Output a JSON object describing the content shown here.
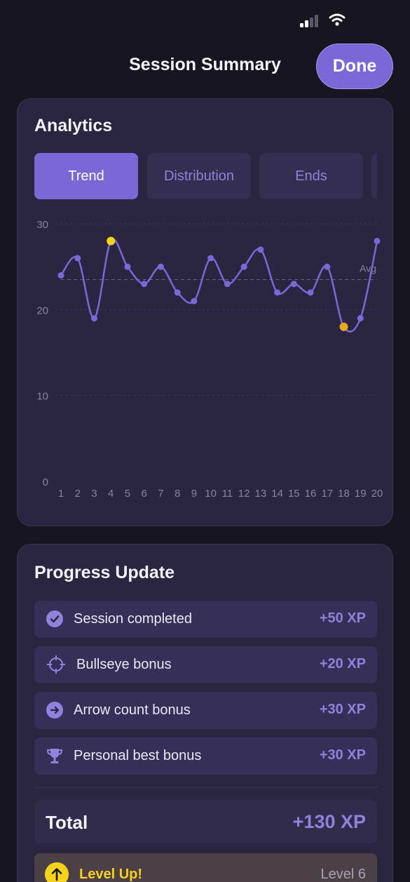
{
  "header": {
    "title": "Session Summary",
    "done_label": "Done"
  },
  "analytics": {
    "title": "Analytics",
    "tabs": [
      {
        "label": "Trend",
        "active": true
      },
      {
        "label": "Distribution",
        "active": false
      },
      {
        "label": "Ends",
        "active": false
      },
      {
        "label": "",
        "active": false
      }
    ]
  },
  "chart_data": {
    "type": "line",
    "x": [
      1,
      2,
      3,
      4,
      5,
      6,
      7,
      8,
      9,
      10,
      11,
      12,
      13,
      14,
      15,
      16,
      17,
      18,
      19,
      20
    ],
    "values": [
      24,
      26,
      19,
      28,
      25,
      23,
      25,
      22,
      21,
      26,
      23,
      25,
      27,
      22,
      23,
      22,
      25,
      18,
      19,
      28
    ],
    "ylim": [
      0,
      30
    ],
    "yticks": [
      0,
      10,
      20,
      30
    ],
    "average": 23.5,
    "average_label": "Avg",
    "highlights": [
      {
        "x": 4,
        "value": 28,
        "color": "#f5d21c"
      },
      {
        "x": 18,
        "value": 18,
        "color": "#e8a91a"
      }
    ],
    "line_color": "#7b68d6",
    "grid": true
  },
  "progress": {
    "title": "Progress Update",
    "items": [
      {
        "label": "Session completed",
        "xp": "+50 XP",
        "icon": "check-circle-icon"
      },
      {
        "label": "Bullseye bonus",
        "xp": "+20 XP",
        "icon": "crosshair-icon"
      },
      {
        "label": "Arrow count bonus",
        "xp": "+30 XP",
        "icon": "arrow-right-circle-icon"
      },
      {
        "label": "Personal best bonus",
        "xp": "+30 XP",
        "icon": "trophy-icon"
      }
    ],
    "total_label": "Total",
    "total_value": "+130 XP",
    "level_up_label": "Level Up!",
    "level_value": "Level 6"
  },
  "colors": {
    "accent": "#7b68d6",
    "background": "#17151f",
    "card": "#2a2541",
    "highlight": "#f5d21c"
  }
}
